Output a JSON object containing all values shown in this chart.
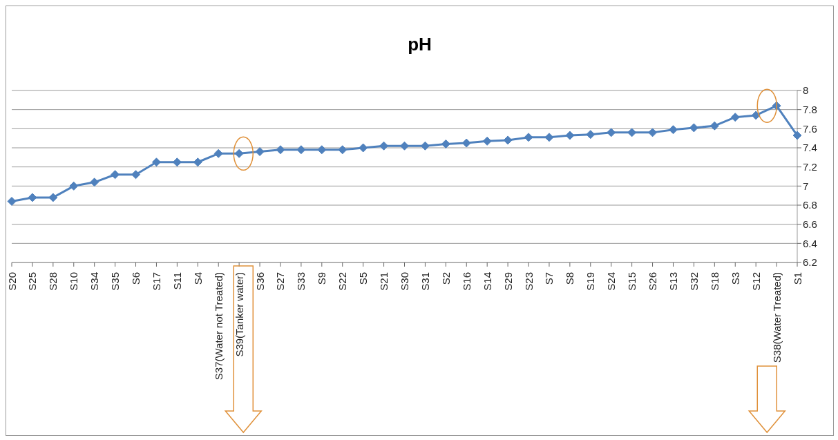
{
  "chart_data": {
    "type": "line",
    "title": "pH",
    "categories": [
      "S20",
      "S25",
      "S28",
      "S10",
      "S34",
      "S35",
      "S6",
      "S17",
      "S11",
      "S4",
      "S37(Water not Treated)",
      "S39(Tanker water)",
      "S36",
      "S27",
      "S33",
      "S9",
      "S22",
      "S5",
      "S21",
      "S30",
      "S31",
      "S2",
      "S16",
      "S14",
      "S29",
      "S23",
      "S7",
      "S8",
      "S19",
      "S24",
      "S15",
      "S26",
      "S13",
      "S32",
      "S18",
      "S3",
      "S12",
      "S38(Water Treated)",
      "S1"
    ],
    "series": [
      {
        "color": "#4f81bd",
        "values": [
          6.84,
          6.88,
          6.88,
          7.0,
          7.04,
          7.12,
          7.12,
          7.25,
          7.25,
          7.25,
          7.34,
          7.34,
          7.36,
          7.38,
          7.38,
          7.38,
          7.38,
          7.4,
          7.42,
          7.42,
          7.42,
          7.44,
          7.45,
          7.47,
          7.48,
          7.51,
          7.51,
          7.53,
          7.54,
          7.56,
          7.56,
          7.56,
          7.59,
          7.61,
          7.63,
          7.72,
          7.74,
          7.84,
          7.53
        ]
      }
    ],
    "ylim": [
      6.2,
      8
    ],
    "yticks": [
      6.2,
      6.4,
      6.6,
      6.8,
      7,
      7.2,
      7.4,
      7.6,
      7.8,
      8
    ],
    "grid": "y",
    "marker": "diamond",
    "line_style": "solid"
  }
}
